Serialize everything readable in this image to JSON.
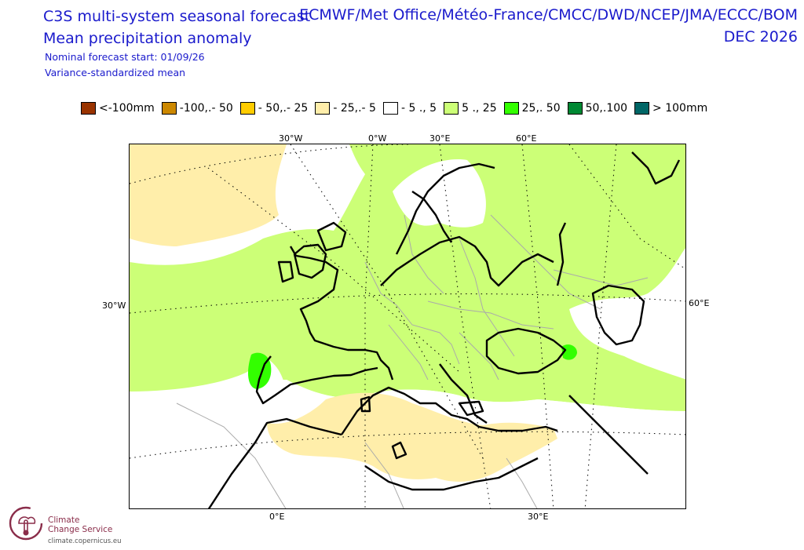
{
  "header": {
    "title1": "C3S multi-system seasonal forecast",
    "title2": "Mean precipitation anomaly",
    "subtitle1": "Nominal forecast start: 01/09/26",
    "subtitle2": "Variance-standardized mean",
    "systems": "ECMWF/Met Office/Météo-France/CMCC/DWD/NCEP/JMA/ECCC/BOM",
    "period": "DEC 2026"
  },
  "legend": [
    {
      "label": "<-100mm",
      "color": "#993300"
    },
    {
      "label": "-100,.- 50",
      "color": "#cc8800"
    },
    {
      "label": "- 50,.- 25",
      "color": "#ffcc00"
    },
    {
      "label": "- 25,.- 5",
      "color": "#ffeeaa"
    },
    {
      "label": "- 5 ., 5",
      "color": "#ffffff"
    },
    {
      "label": "5 ., 25",
      "color": "#ccff77"
    },
    {
      "label": "25,. 50",
      "color": "#33ff00"
    },
    {
      "label": "50,.100",
      "color": "#008833"
    },
    {
      "label": "> 100mm",
      "color": "#006666"
    }
  ],
  "map": {
    "top_labels": [
      "30°W",
      "0°W",
      "30°E",
      "60°E"
    ],
    "left_label": "30°W",
    "right_label": "60°E",
    "bottom_labels": [
      "0°E",
      "30°E"
    ]
  },
  "footer": {
    "brand_line1": "Climate",
    "brand_line2": "Change Service",
    "url": "climate.copernicus.eu"
  }
}
